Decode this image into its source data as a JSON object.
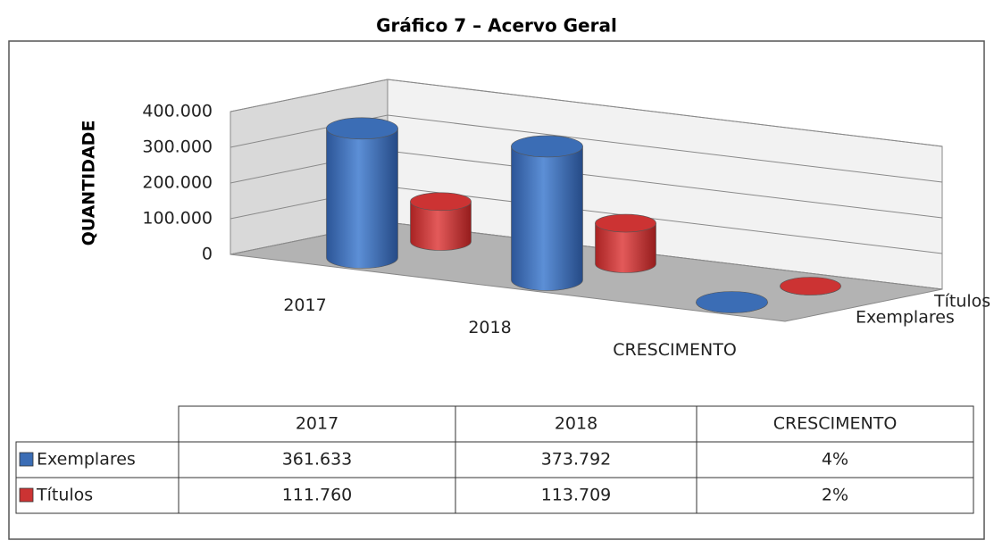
{
  "chart_data": {
    "type": "bar3d",
    "title": "Gráfico 7 – Acervo Geral",
    "y_label": "QUANTIDADE",
    "categories": [
      "2017",
      "2018",
      "CRESCIMENTO"
    ],
    "series": [
      {
        "name": "Exemplares",
        "color": "#3b6db5",
        "values": [
          361633,
          373792,
          4
        ],
        "value_labels": [
          "361.633",
          "373.792",
          "4%"
        ]
      },
      {
        "name": "Títulos",
        "color": "#cc3333",
        "values": [
          111760,
          113709,
          2
        ],
        "value_labels": [
          "111.760",
          "113.709",
          "2%"
        ]
      }
    ],
    "ylim": [
      0,
      400000
    ],
    "yticks": [
      0,
      {
        "value": 100000,
        "label": "100.000"
      },
      {
        "value": 200000,
        "label": "200.000"
      },
      {
        "value": 300000,
        "label": "300.000"
      },
      {
        "value": 400000,
        "label": "400.000"
      }
    ],
    "grid": true,
    "data_table": true
  }
}
